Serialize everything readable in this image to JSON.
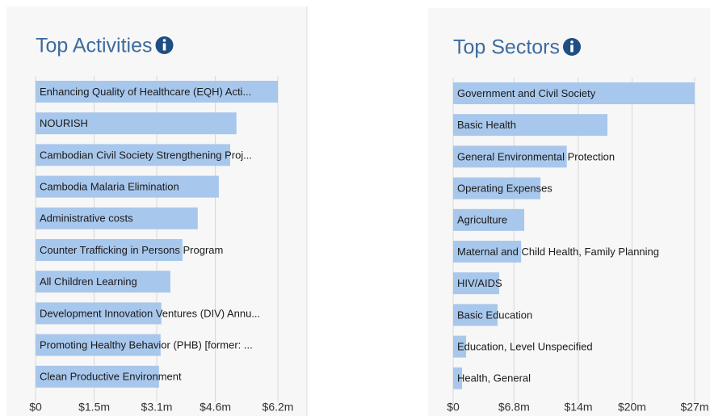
{
  "chart_data": [
    {
      "type": "bar",
      "orientation": "horizontal",
      "title": "Top Activities",
      "color": "#a8c7ec",
      "grid": true,
      "categories": [
        "Enhancing Quality of Healthcare (EQH) Acti...",
        "NOURISH",
        "Cambodian Civil Society Strengthening Proj...",
        "Cambodia Malaria Elimination",
        "Administrative costs",
        "Counter Trafficking in Persons Program",
        "All Children Learning",
        "Development Innovation Ventures (DIV) Annu...",
        "Promoting Healthy Behavior (PHB) [former: ...",
        "Clean Productive Environment"
      ],
      "values": [
        6.2,
        5.14,
        4.98,
        4.69,
        4.15,
        3.76,
        3.45,
        3.22,
        3.2,
        3.16
      ],
      "xlim": [
        0,
        6.2
      ],
      "xticks": [
        {
          "value": 0,
          "label": "$0"
        },
        {
          "value": 1.5,
          "label": "$1.5m"
        },
        {
          "value": 3.1,
          "label": "$3.1m"
        },
        {
          "value": 4.6,
          "label": "$4.6m"
        },
        {
          "value": 6.2,
          "label": "$6.2m"
        }
      ]
    },
    {
      "type": "bar",
      "orientation": "horizontal",
      "title": "Top Sectors",
      "color": "#a8c7ec",
      "grid": true,
      "categories": [
        "Government and Civil Society",
        "Basic Health",
        "General Environmental Protection",
        "Operating Expenses",
        "Agriculture",
        "Maternal and Child Health, Family Planning",
        "HIV/AIDS",
        "Basic Education",
        "Education, Level Unspecified",
        "Health, General"
      ],
      "values": [
        27,
        17.25,
        12.7,
        9.76,
        7.95,
        7.6,
        5.15,
        4.97,
        1.45,
        1.0
      ],
      "xlim": [
        0,
        27
      ],
      "xticks": [
        {
          "value": 0,
          "label": "$0"
        },
        {
          "value": 6.8,
          "label": "$6.8m"
        },
        {
          "value": 14,
          "label": "$14m"
        },
        {
          "value": 20,
          "label": "$20m"
        },
        {
          "value": 27,
          "label": "$27m"
        }
      ]
    }
  ]
}
